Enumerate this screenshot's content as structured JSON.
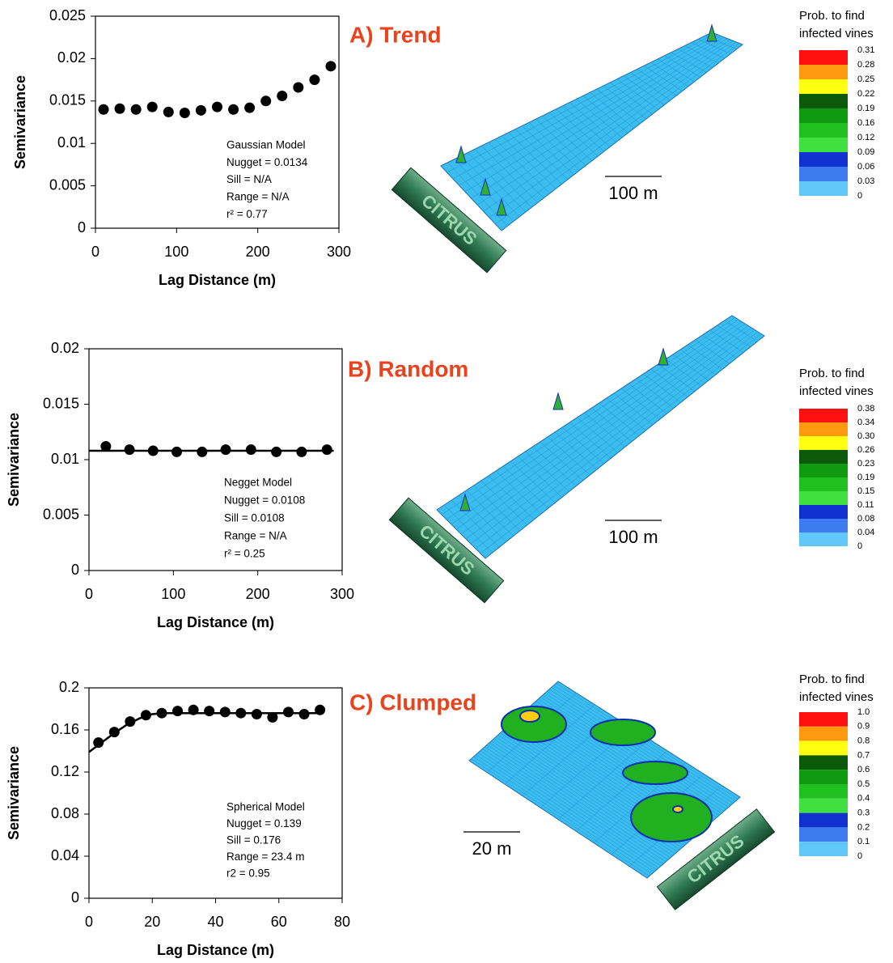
{
  "chart_data": [
    {
      "type": "scatter",
      "title": "A) Trend",
      "x": [
        10,
        30,
        50,
        70,
        90,
        110,
        130,
        150,
        170,
        190,
        210,
        230,
        250,
        270,
        290
      ],
      "values": [
        0.014,
        0.0141,
        0.014,
        0.0143,
        0.0137,
        0.0136,
        0.0139,
        0.0143,
        0.014,
        0.0142,
        0.015,
        0.0156,
        0.0166,
        0.0175,
        0.0191
      ],
      "color": "#000000",
      "xlabel": "Lag Distance (m)",
      "ylabel": "Semivariance",
      "xlim": [
        0,
        300
      ],
      "ylim": [
        0,
        0.025
      ],
      "xticks": [
        0,
        100,
        200,
        300
      ],
      "yticks": [
        0,
        0.005,
        0.01,
        0.015,
        0.02,
        0.025
      ],
      "annotations": [
        "Gaussian Model",
        "Nugget = 0.0134",
        "Sill = N/A",
        "Range = N/A",
        "r² = 0.77"
      ],
      "colorbar_title": [
        "Prob. to find",
        "infected vines"
      ],
      "colorbar_ticks": [
        0.31,
        0.28,
        0.25,
        0.22,
        0.19,
        0.16,
        0.12,
        0.09,
        0.06,
        0.03,
        0
      ],
      "colorbar_colors": [
        "#ff1010",
        "#ff9a10",
        "#ffff10",
        "#0a5a0a",
        "#109a10",
        "#20c020",
        "#40e040",
        "#1030d0",
        "#3c7cf0",
        "#60c8f8"
      ],
      "scale_label": "100 m",
      "sign": "CITRUS"
    },
    {
      "type": "scatter",
      "title": "B) Random",
      "x": [
        20,
        48,
        76,
        104,
        134,
        162,
        192,
        222,
        252,
        282
      ],
      "values": [
        0.0112,
        0.0109,
        0.0108,
        0.0107,
        0.0107,
        0.0109,
        0.0109,
        0.0107,
        0.0107,
        0.0109
      ],
      "color": "#000000",
      "xlabel": "Lag Distance (m)",
      "ylabel": "Semivariance",
      "xlim": [
        0,
        300
      ],
      "ylim": [
        0,
        0.02
      ],
      "xticks": [
        0,
        100,
        200,
        300
      ],
      "yticks": [
        0,
        0.005,
        0.01,
        0.015,
        0.02
      ],
      "model_line": {
        "x": [
          0,
          290
        ],
        "values": [
          0.0108,
          0.0108
        ]
      },
      "annotations": [
        "Negget Model",
        "Nugget = 0.0108",
        "Sill = 0.0108",
        "Range = N/A",
        "r² = 0.25"
      ],
      "colorbar_title": [
        "Prob. to find",
        "infected vines"
      ],
      "colorbar_ticks": [
        0.38,
        0.34,
        {
          "value": 0.3,
          "label": "0.30"
        },
        0.26,
        0.23,
        0.19,
        0.15,
        0.11,
        0.08,
        0.04,
        0
      ],
      "colorbar_colors": [
        "#ff1010",
        "#ff9a10",
        "#ffff10",
        "#0a5a0a",
        "#109a10",
        "#20c020",
        "#40e040",
        "#1030d0",
        "#3c7cf0",
        "#60c8f8"
      ],
      "scale_label": "100 m",
      "sign": "CITRUS"
    },
    {
      "type": "scatter",
      "title": "C) Clumped",
      "x": [
        3,
        8,
        13,
        18,
        23,
        28,
        33,
        38,
        43,
        48,
        53,
        58,
        63,
        68,
        73
      ],
      "values": [
        0.148,
        0.158,
        0.168,
        0.174,
        0.176,
        0.178,
        0.179,
        0.178,
        0.177,
        0.176,
        0.175,
        0.172,
        0.177,
        0.175,
        0.179
      ],
      "color": "#000000",
      "xlabel": "Lag Distance (m)",
      "ylabel": "Semivariance",
      "xlim": [
        0,
        80
      ],
      "ylim": [
        0,
        0.2
      ],
      "xticks": [
        0,
        20,
        40,
        60,
        80
      ],
      "yticks": [
        0,
        0.04,
        0.08,
        0.12,
        0.16,
        0.2
      ],
      "model_line": {
        "x": [
          0,
          4,
          8,
          12,
          16,
          20,
          23.4,
          73
        ],
        "values": [
          0.139,
          0.148,
          0.157,
          0.165,
          0.171,
          0.175,
          0.176,
          0.176
        ]
      },
      "annotations": [
        "Spherical Model",
        "Nugget = 0.139",
        "Sill = 0.176",
        "Range = 23.4 m",
        "r2 = 0.95"
      ],
      "colorbar_title": [
        "Prob. to find",
        "infected vines"
      ],
      "colorbar_ticks": [
        {
          "value": 1,
          "label": "1.0"
        },
        0.9,
        0.8,
        0.7,
        0.6,
        0.5,
        0.4,
        0.3,
        0.2,
        0.1,
        0
      ],
      "colorbar_colors": [
        "#ff1010",
        "#ff9a10",
        "#ffff10",
        "#0a5a0a",
        "#109a10",
        "#20c020",
        "#40e040",
        "#1030d0",
        "#3c7cf0",
        "#60c8f8"
      ],
      "scale_label": "20 m",
      "sign": "CITRUS"
    }
  ]
}
